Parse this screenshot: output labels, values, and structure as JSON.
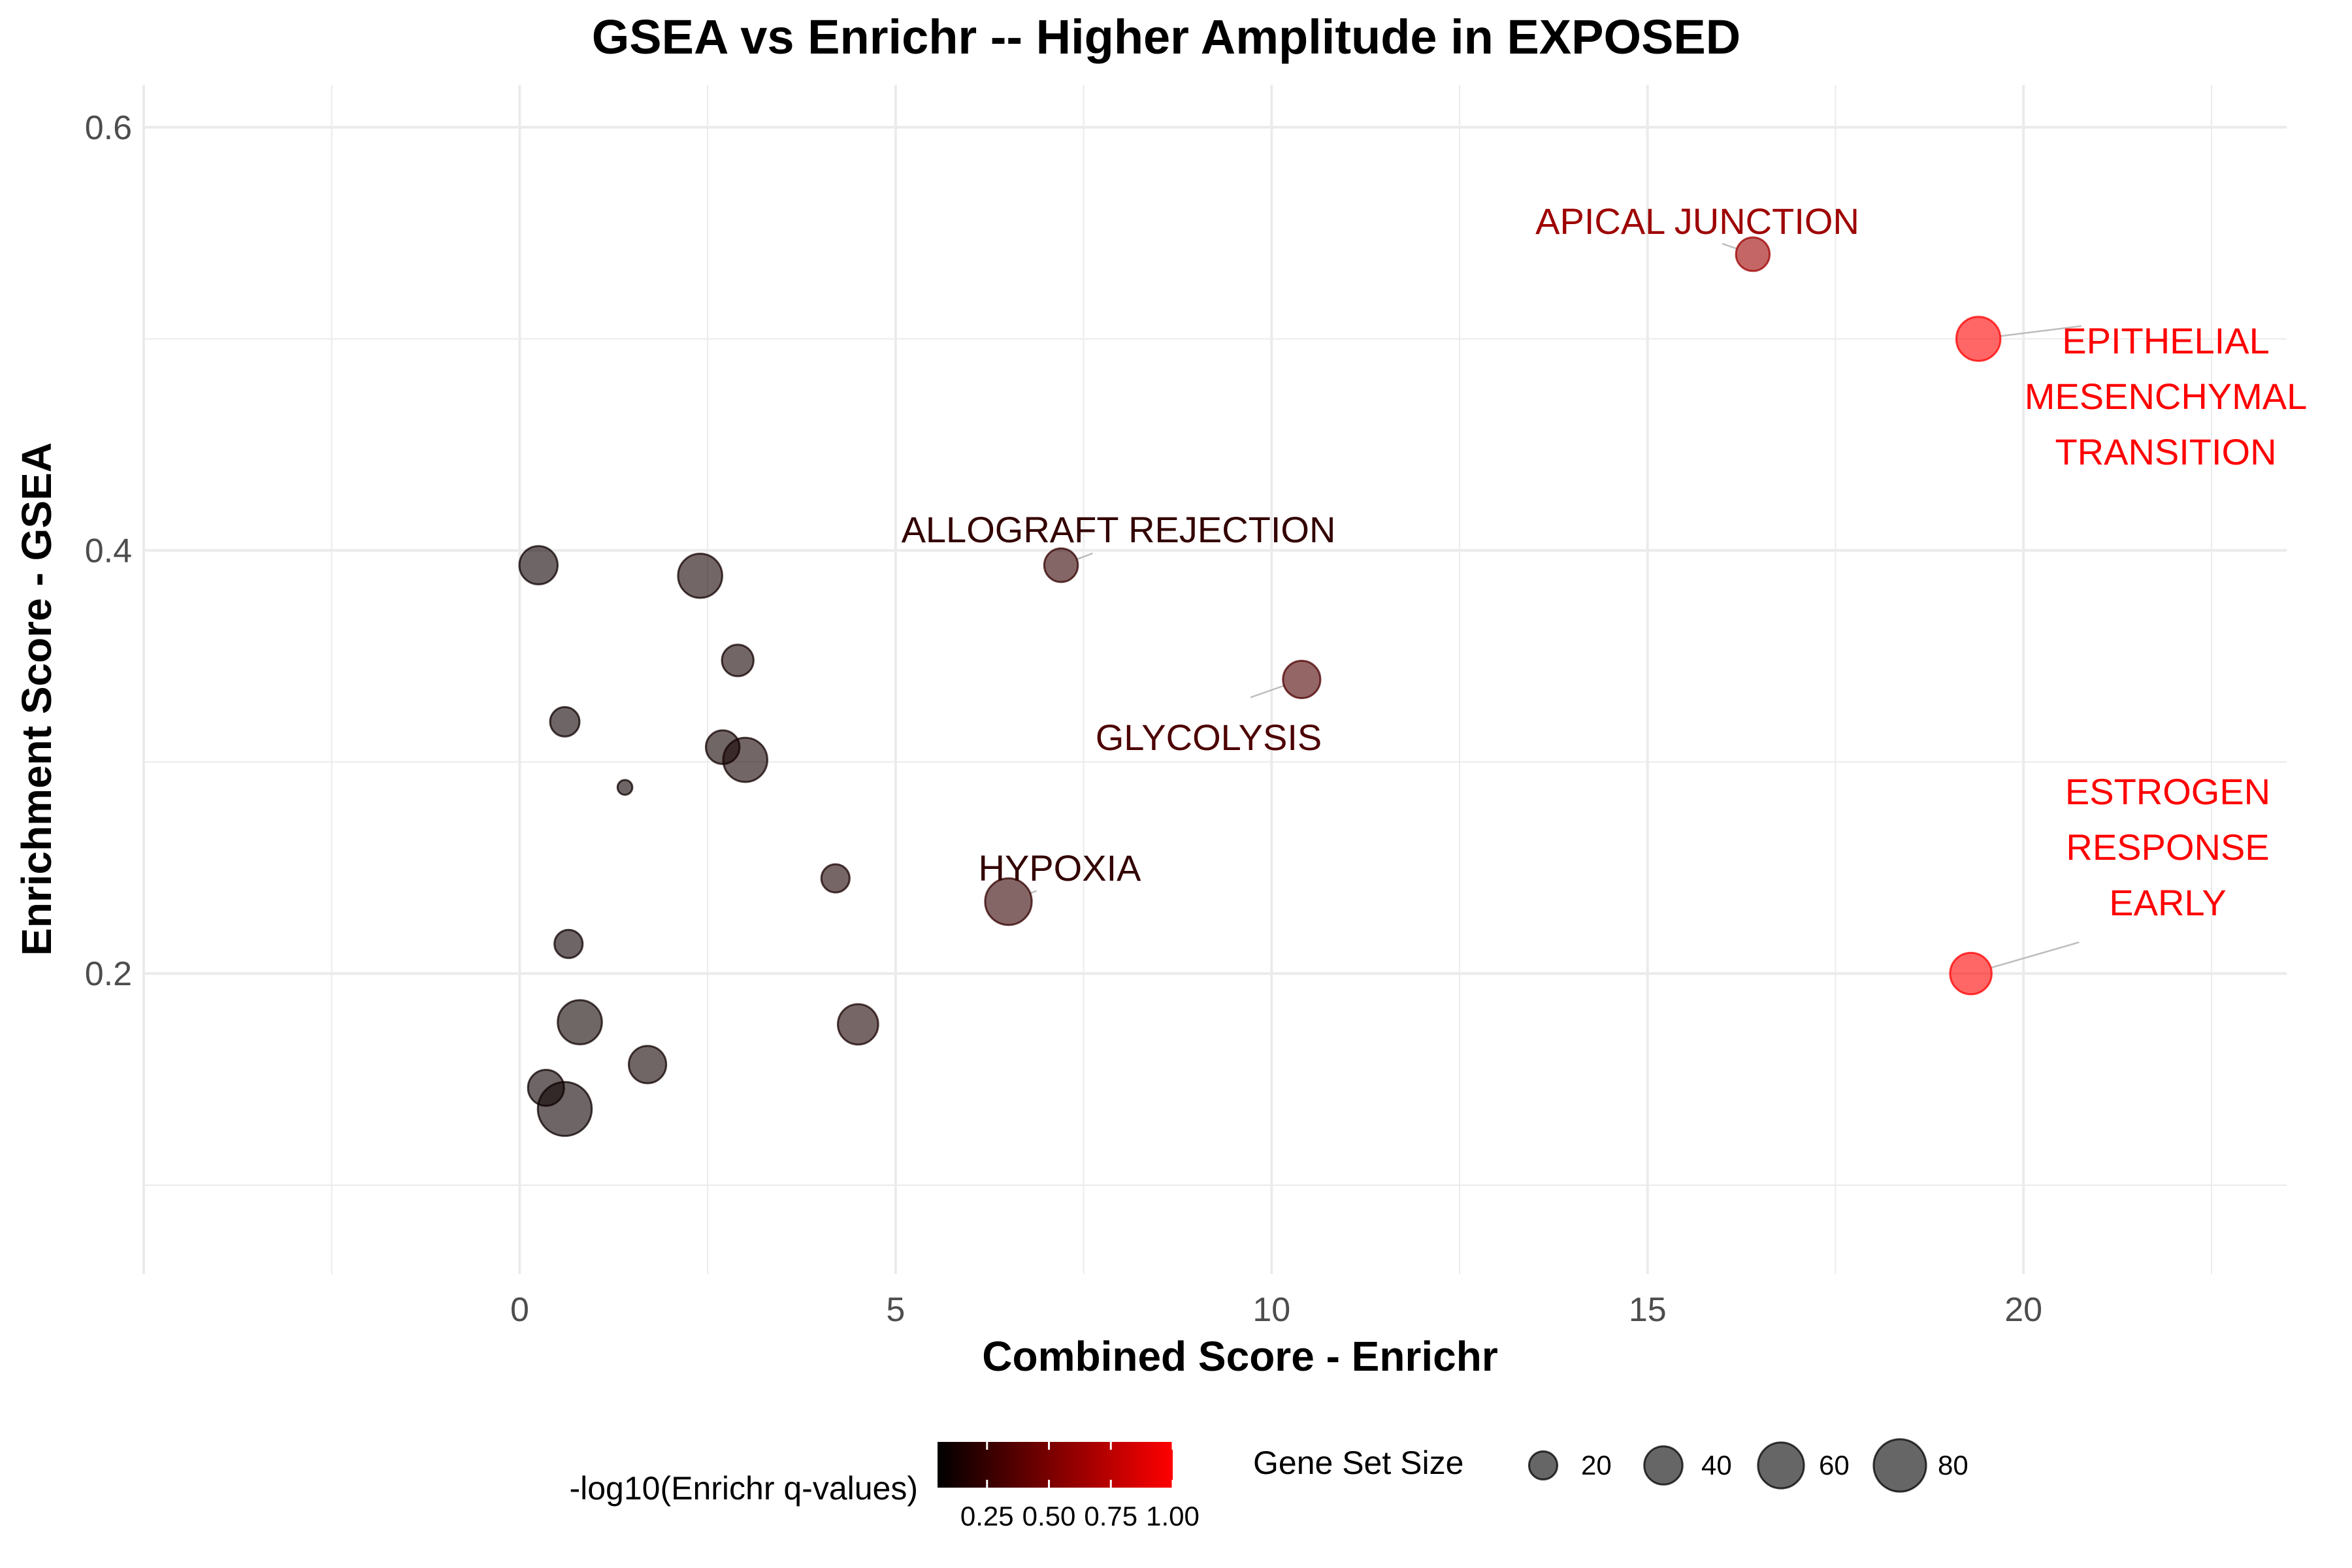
{
  "chart_data": {
    "type": "scatter",
    "title": "GSEA vs Enrichr -- Higher Amplitude in EXPOSED",
    "xlabel": "Combined Score - Enrichr",
    "ylabel": "Enrichment Score - GSEA",
    "xlim": [
      -5,
      23.5
    ],
    "ylim": [
      0.058,
      0.62
    ],
    "x_ticks": [
      0,
      5,
      10,
      15,
      20
    ],
    "y_ticks": [
      0.2,
      0.4,
      0.6
    ],
    "x_tick_labels": [
      "0",
      "5",
      "10",
      "15",
      "20"
    ],
    "y_tick_labels": [
      "0.2",
      "0.4",
      "0.6"
    ],
    "grid": true,
    "points": [
      {
        "x": 16.4,
        "y": 0.54,
        "size": 30,
        "q": 0.62,
        "label": [
          "APICAL JUNCTION"
        ]
      },
      {
        "x": 19.4,
        "y": 0.5,
        "size": 55,
        "q": 1.0,
        "label": [
          "EPITHELIAL",
          "MESENCHYMAL",
          "TRANSITION"
        ]
      },
      {
        "x": 19.3,
        "y": 0.2,
        "size": 48,
        "q": 1.0,
        "label": [
          "ESTROGEN",
          "RESPONSE",
          "EARLY"
        ]
      },
      {
        "x": 7.2,
        "y": 0.393,
        "size": 30,
        "q": 0.2,
        "label": [
          "ALLOGRAFT REJECTION"
        ]
      },
      {
        "x": 10.4,
        "y": 0.339,
        "size": 38,
        "q": 0.3,
        "label": [
          "GLYCOLYSIS"
        ]
      },
      {
        "x": 6.5,
        "y": 0.234,
        "size": 62,
        "q": 0.2,
        "label": [
          "HYPOXIA"
        ]
      },
      {
        "x": 0.25,
        "y": 0.393,
        "size": 40,
        "q": 0.05
      },
      {
        "x": 2.4,
        "y": 0.388,
        "size": 55,
        "q": 0.08
      },
      {
        "x": 2.9,
        "y": 0.348,
        "size": 26,
        "q": 0.08
      },
      {
        "x": 0.6,
        "y": 0.319,
        "size": 22,
        "q": 0.05
      },
      {
        "x": 2.7,
        "y": 0.307,
        "size": 30,
        "q": 0.07
      },
      {
        "x": 3.0,
        "y": 0.301,
        "size": 55,
        "q": 0.08
      },
      {
        "x": 1.4,
        "y": 0.288,
        "size": 4,
        "q": 0.05
      },
      {
        "x": 4.2,
        "y": 0.245,
        "size": 20,
        "q": 0.1
      },
      {
        "x": 0.65,
        "y": 0.214,
        "size": 20,
        "q": 0.05
      },
      {
        "x": 0.8,
        "y": 0.177,
        "size": 55,
        "q": 0.06
      },
      {
        "x": 4.5,
        "y": 0.176,
        "size": 45,
        "q": 0.1
      },
      {
        "x": 1.7,
        "y": 0.157,
        "size": 38,
        "q": 0.07
      },
      {
        "x": 0.35,
        "y": 0.146,
        "size": 35,
        "q": 0.05
      },
      {
        "x": 0.6,
        "y": 0.136,
        "size": 85,
        "q": 0.05
      }
    ],
    "legend": {
      "placement": "bottom",
      "color": {
        "title": "-log10(Enrichr q-values)",
        "tick_labels": [
          "0.25",
          "0.50",
          "0.75",
          "1.00"
        ],
        "low_color": "#000000",
        "high_color": "#ff0000"
      },
      "size": {
        "title": "Gene Set Size",
        "tick_labels": [
          "20",
          "40",
          "60",
          "80"
        ],
        "values": [
          20,
          40,
          60,
          80
        ]
      }
    }
  }
}
